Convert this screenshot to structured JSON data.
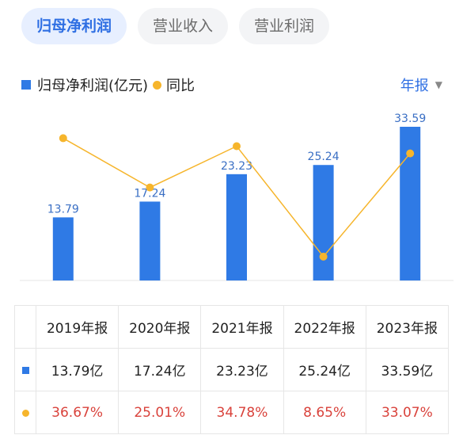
{
  "tabs": [
    {
      "label": "归母净利润",
      "active": true
    },
    {
      "label": "营业收入",
      "active": false
    },
    {
      "label": "营业利润",
      "active": false
    }
  ],
  "legend": {
    "bar": "归母净利润(亿元)",
    "line": "同比"
  },
  "period": {
    "label": "年报"
  },
  "colors": {
    "bar": "#2f7ae5",
    "line": "#f6b52c",
    "accent": "#2f6fe3",
    "negative_text": "#d9423b"
  },
  "chart_data": {
    "type": "bar",
    "categories": [
      "2019年报",
      "2020年报",
      "2021年报",
      "2022年报",
      "2023年报"
    ],
    "series": [
      {
        "name": "归母净利润(亿元)",
        "type": "bar",
        "values": [
          13.79,
          17.24,
          23.23,
          25.24,
          33.59
        ]
      },
      {
        "name": "同比",
        "type": "line",
        "values": [
          36.67,
          25.01,
          34.78,
          8.65,
          33.07
        ]
      }
    ],
    "bar_labels": [
      "13.79",
      "17.24",
      "23.23",
      "25.24",
      "33.59"
    ],
    "legend_position": "top-left"
  },
  "table": {
    "headers": [
      "2019年报",
      "2020年报",
      "2021年报",
      "2022年报",
      "2023年报"
    ],
    "profit_row": [
      "13.79亿",
      "17.24亿",
      "23.23亿",
      "25.24亿",
      "33.59亿"
    ],
    "yoy_row": [
      "36.67%",
      "25.01%",
      "34.78%",
      "8.65%",
      "33.07%"
    ]
  }
}
